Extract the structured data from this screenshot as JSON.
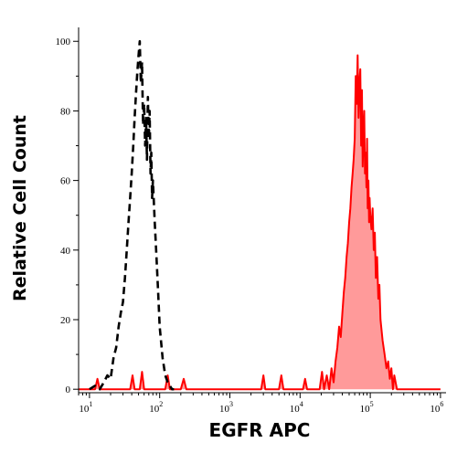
{
  "chart_data": {
    "type": "area",
    "xlabel": "EGFR APC",
    "ylabel": "Relative Cell Count",
    "x_scale": "log",
    "xlim": [
      7,
      1200000
    ],
    "ylim": [
      -1,
      104
    ],
    "grid": false,
    "legend": "none",
    "x_ticks": [
      {
        "value": 10,
        "base": "10",
        "exp": "1"
      },
      {
        "value": 100,
        "base": "10",
        "exp": "2"
      },
      {
        "value": 1000,
        "base": "10",
        "exp": "3"
      },
      {
        "value": 10000,
        "base": "10",
        "exp": "4"
      },
      {
        "value": 100000,
        "base": "10",
        "exp": "5"
      },
      {
        "value": 1000000,
        "base": "10",
        "exp": "6"
      }
    ],
    "y_ticks": [
      0,
      20,
      40,
      60,
      80,
      100
    ],
    "series": [
      {
        "style": "dashed",
        "color": "#000000",
        "fill": "none",
        "x": [
          10,
          12,
          14,
          16,
          18,
          20,
          22,
          24,
          26,
          28,
          30,
          32,
          34,
          36,
          38,
          40,
          42,
          44,
          46,
          48,
          50,
          52,
          54,
          56,
          58,
          60,
          62,
          64,
          66,
          68,
          70,
          72,
          74,
          76,
          78,
          80,
          85,
          90,
          95,
          100,
          110,
          120,
          130,
          140,
          150,
          160
        ],
        "y": [
          0,
          1,
          0,
          2,
          4,
          3,
          9,
          12,
          18,
          22,
          25,
          32,
          40,
          48,
          55,
          62,
          70,
          78,
          85,
          91,
          96,
          100,
          88,
          94,
          76,
          82,
          70,
          78,
          66,
          84,
          72,
          80,
          62,
          68,
          55,
          60,
          48,
          38,
          28,
          18,
          9,
          4,
          2,
          1,
          0,
          0
        ]
      },
      {
        "style": "solid",
        "color": "#ff0000",
        "fill": "#ff9a9a",
        "x": [
          7,
          12,
          13,
          14,
          22,
          38,
          41,
          44,
          52,
          56,
          60,
          120,
          130,
          140,
          200,
          220,
          240,
          2800,
          3000,
          3200,
          5000,
          5400,
          5800,
          11000,
          11800,
          12600,
          19000,
          20500,
          22000,
          24000,
          26000,
          28000,
          30000,
          32000,
          34000,
          36000,
          38000,
          40000,
          42000,
          44000,
          46000,
          48000,
          50000,
          52000,
          54000,
          56000,
          58000,
          60000,
          62000,
          64000,
          66000,
          68000,
          70000,
          72000,
          74000,
          76000,
          78000,
          80000,
          82000,
          84000,
          86000,
          88000,
          90000,
          92000,
          94000,
          96000,
          98000,
          100000,
          104000,
          108000,
          112000,
          116000,
          120000,
          125000,
          130000,
          135000,
          140000,
          150000,
          160000,
          170000,
          180000,
          190000,
          200000,
          210000,
          220000,
          240000,
          260000,
          400000,
          700000,
          1000000
        ],
        "y": [
          0,
          0,
          3,
          0,
          0,
          0,
          4,
          0,
          0,
          5,
          0,
          0,
          4,
          0,
          0,
          3,
          0,
          0,
          4,
          0,
          0,
          4,
          0,
          0,
          3,
          0,
          0,
          5,
          0,
          4,
          0,
          6,
          2,
          8,
          12,
          18,
          15,
          22,
          28,
          32,
          38,
          42,
          48,
          52,
          58,
          62,
          66,
          72,
          90,
          82,
          96,
          78,
          88,
          92,
          70,
          86,
          64,
          74,
          80,
          62,
          68,
          58,
          72,
          52,
          60,
          48,
          55,
          50,
          46,
          52,
          40,
          45,
          32,
          38,
          26,
          30,
          20,
          14,
          10,
          6,
          8,
          3,
          6,
          0,
          4,
          0,
          0,
          0,
          0,
          0
        ]
      }
    ]
  }
}
